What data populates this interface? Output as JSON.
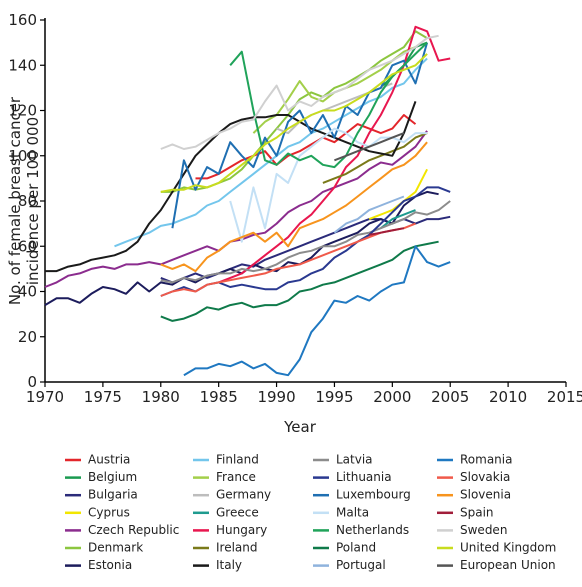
{
  "chart_data": {
    "type": "line",
    "xlabel": "Year",
    "ylabel": [
      "No. of female breast cancer",
      "incidence per 100 000"
    ],
    "x": [
      1970,
      1971,
      1972,
      1973,
      1974,
      1975,
      1976,
      1977,
      1978,
      1979,
      1980,
      1981,
      1982,
      1983,
      1984,
      1985,
      1986,
      1987,
      1988,
      1989,
      1990,
      1991,
      1992,
      1993,
      1994,
      1995,
      1996,
      1997,
      1998,
      1999,
      2000,
      2001,
      2002,
      2003,
      2004,
      2005
    ],
    "xlim": [
      1970,
      2015
    ],
    "xticks": [
      1970,
      1975,
      1980,
      1985,
      1990,
      1995,
      2000,
      2005,
      2010,
      2015
    ],
    "ylim": [
      0,
      160
    ],
    "yticks": [
      0,
      20,
      40,
      60,
      80,
      100,
      120,
      140,
      160
    ],
    "series": [
      {
        "name": "Austria",
        "color": "#e3262b",
        "values": [
          null,
          null,
          null,
          null,
          null,
          null,
          null,
          null,
          null,
          null,
          null,
          null,
          null,
          90,
          90,
          92,
          95,
          98,
          100,
          102,
          96,
          100,
          102,
          105,
          108,
          106,
          110,
          114,
          112,
          110,
          112,
          118,
          114,
          null,
          null,
          null
        ]
      },
      {
        "name": "Belgium",
        "color": "#1a9a50",
        "values": [
          null,
          null,
          null,
          null,
          null,
          null,
          null,
          null,
          null,
          null,
          null,
          null,
          null,
          null,
          null,
          null,
          null,
          null,
          null,
          null,
          null,
          null,
          null,
          null,
          null,
          null,
          null,
          null,
          null,
          130,
          135,
          140,
          148,
          150,
          null,
          null
        ]
      },
      {
        "name": "Bulgaria",
        "color": "#2b2b7a",
        "values": [
          null,
          null,
          null,
          null,
          null,
          null,
          null,
          null,
          null,
          null,
          46,
          44,
          46,
          48,
          46,
          48,
          50,
          52,
          51,
          54,
          56,
          58,
          60,
          62,
          64,
          66,
          68,
          70,
          72,
          72,
          70,
          72,
          70,
          72,
          72,
          73
        ]
      },
      {
        "name": "Cyprus",
        "color": "#f2e600",
        "values": [
          null,
          null,
          null,
          null,
          null,
          null,
          null,
          null,
          null,
          null,
          null,
          null,
          null,
          null,
          null,
          null,
          null,
          null,
          null,
          null,
          null,
          null,
          null,
          null,
          null,
          null,
          null,
          null,
          72,
          74,
          76,
          80,
          84,
          94,
          null,
          null
        ]
      },
      {
        "name": "Czech Republic",
        "color": "#8b2c8e",
        "values": [
          42,
          44,
          47,
          48,
          50,
          51,
          50,
          52,
          52,
          53,
          52,
          54,
          56,
          58,
          60,
          58,
          62,
          63,
          65,
          66,
          70,
          75,
          78,
          80,
          84,
          86,
          88,
          90,
          94,
          97,
          96,
          100,
          104,
          111,
          null,
          null
        ]
      },
      {
        "name": "Denmark",
        "color": "#8cc63f",
        "values": [
          null,
          null,
          null,
          null,
          null,
          null,
          null,
          null,
          null,
          null,
          84,
          84,
          86,
          85,
          86,
          88,
          90,
          94,
          100,
          106,
          112,
          118,
          125,
          128,
          126,
          130,
          132,
          135,
          138,
          142,
          145,
          148,
          155,
          152,
          null,
          null
        ]
      },
      {
        "name": "Estonia",
        "color": "#1c1c5c",
        "values": [
          34,
          37,
          37,
          35,
          39,
          42,
          41,
          39,
          44,
          40,
          44,
          43,
          46,
          44,
          47,
          48,
          50,
          48,
          52,
          50,
          49,
          53,
          52,
          55,
          60,
          62,
          64,
          66,
          70,
          72,
          70,
          78,
          82,
          84,
          83,
          null
        ]
      },
      {
        "name": "Finland",
        "color": "#73c6ec",
        "values": [
          null,
          null,
          null,
          null,
          null,
          null,
          60,
          62,
          64,
          66,
          69,
          70,
          72,
          74,
          78,
          80,
          84,
          88,
          92,
          96,
          100,
          104,
          106,
          110,
          112,
          115,
          118,
          121,
          124,
          126,
          130,
          132,
          138,
          143,
          null,
          null
        ]
      },
      {
        "name": "France",
        "color": "#a3cf4a",
        "values": [
          null,
          null,
          null,
          null,
          null,
          null,
          null,
          null,
          null,
          null,
          null,
          null,
          null,
          null,
          null,
          null,
          null,
          null,
          110,
          115,
          118,
          125,
          133,
          126,
          124,
          128,
          130,
          132,
          135,
          138,
          142,
          146,
          148,
          null,
          null,
          null
        ]
      },
      {
        "name": "Germany",
        "color": "#bdbdbd",
        "values": [
          null,
          null,
          null,
          null,
          null,
          null,
          null,
          null,
          null,
          null,
          null,
          null,
          null,
          null,
          null,
          null,
          null,
          null,
          null,
          null,
          112,
          110,
          115,
          118,
          120,
          122,
          124,
          126,
          128,
          130,
          132,
          null,
          null,
          null,
          null,
          null
        ]
      },
      {
        "name": "Greece",
        "color": "#1f9b8f",
        "values": [
          null,
          null,
          null,
          null,
          null,
          null,
          null,
          null,
          null,
          null,
          null,
          null,
          null,
          null,
          null,
          null,
          null,
          null,
          null,
          null,
          null,
          null,
          null,
          null,
          null,
          null,
          null,
          null,
          null,
          68,
          72,
          74,
          76,
          null,
          null,
          null
        ]
      },
      {
        "name": "Hungary",
        "color": "#e8174f",
        "values": [
          null,
          null,
          null,
          null,
          null,
          null,
          null,
          null,
          null,
          null,
          null,
          null,
          null,
          null,
          null,
          44,
          46,
          48,
          52,
          56,
          60,
          64,
          70,
          74,
          80,
          86,
          95,
          100,
          110,
          118,
          128,
          140,
          157,
          155,
          142,
          143
        ]
      },
      {
        "name": "Ireland",
        "color": "#7a7a1a",
        "values": [
          null,
          null,
          null,
          null,
          null,
          null,
          null,
          null,
          null,
          null,
          null,
          null,
          null,
          null,
          null,
          null,
          null,
          null,
          null,
          null,
          null,
          null,
          null,
          null,
          88,
          90,
          92,
          95,
          98,
          100,
          102,
          104,
          108,
          110,
          null,
          null
        ]
      },
      {
        "name": "Italy",
        "color": "#1a1a1a",
        "values": [
          49,
          49,
          51,
          52,
          54,
          55,
          56,
          58,
          62,
          70,
          76,
          84,
          92,
          100,
          105,
          110,
          114,
          116,
          117,
          117,
          118,
          118,
          115,
          112,
          110,
          108,
          106,
          104,
          102,
          101,
          100,
          110,
          124,
          null,
          null,
          null
        ]
      },
      {
        "name": "Latvia",
        "color": "#8c8c8c",
        "values": [
          null,
          null,
          null,
          null,
          null,
          null,
          null,
          null,
          null,
          null,
          45,
          44,
          46,
          45,
          47,
          48,
          48,
          50,
          49,
          50,
          52,
          55,
          57,
          58,
          60,
          60,
          62,
          65,
          66,
          68,
          70,
          72,
          75,
          74,
          76,
          80
        ]
      },
      {
        "name": "Lithuania",
        "color": "#2a3990",
        "values": [
          null,
          null,
          null,
          null,
          null,
          null,
          null,
          null,
          null,
          null,
          38,
          40,
          42,
          40,
          43,
          44,
          42,
          43,
          42,
          41,
          41,
          44,
          45,
          48,
          50,
          55,
          58,
          62,
          65,
          70,
          75,
          80,
          82,
          86,
          86,
          84
        ]
      },
      {
        "name": "Luxembourg",
        "color": "#1f6fb2",
        "values": [
          null,
          null,
          null,
          null,
          null,
          null,
          null,
          null,
          null,
          null,
          null,
          68,
          98,
          85,
          95,
          92,
          106,
          100,
          95,
          108,
          100,
          115,
          120,
          110,
          118,
          108,
          122,
          118,
          128,
          130,
          140,
          142,
          132,
          150,
          null,
          null
        ]
      },
      {
        "name": "Malta",
        "color": "#c3e0f5",
        "values": [
          null,
          null,
          null,
          null,
          null,
          null,
          null,
          null,
          null,
          null,
          null,
          null,
          null,
          null,
          null,
          null,
          80,
          62,
          86,
          68,
          92,
          88,
          100,
          104,
          108,
          112,
          110,
          106,
          104,
          108,
          108,
          106,
          110,
          110,
          null,
          null
        ]
      },
      {
        "name": "Netherlands",
        "color": "#20a35a",
        "values": [
          null,
          null,
          null,
          null,
          null,
          null,
          null,
          null,
          null,
          null,
          null,
          null,
          null,
          null,
          null,
          null,
          140,
          146,
          120,
          98,
          96,
          101,
          98,
          100,
          96,
          95,
          100,
          110,
          118,
          128,
          135,
          140,
          145,
          150,
          null,
          null
        ]
      },
      {
        "name": "Poland",
        "color": "#0f7a4a",
        "values": [
          null,
          null,
          null,
          null,
          null,
          null,
          null,
          null,
          null,
          null,
          29,
          27,
          28,
          30,
          33,
          32,
          34,
          35,
          33,
          34,
          34,
          36,
          40,
          41,
          43,
          44,
          46,
          48,
          50,
          52,
          54,
          58,
          60,
          61,
          62,
          null
        ]
      },
      {
        "name": "Portugal",
        "color": "#8fb3dd",
        "values": [
          null,
          null,
          null,
          null,
          null,
          null,
          null,
          null,
          null,
          null,
          null,
          null,
          null,
          null,
          null,
          null,
          null,
          null,
          null,
          null,
          null,
          null,
          null,
          null,
          null,
          66,
          70,
          72,
          76,
          78,
          80,
          82,
          null,
          null,
          null,
          null
        ]
      },
      {
        "name": "Romania",
        "color": "#1f78c1",
        "values": [
          null,
          null,
          null,
          null,
          null,
          null,
          null,
          null,
          null,
          null,
          null,
          null,
          3,
          6,
          6,
          8,
          7,
          9,
          6,
          8,
          4,
          3,
          10,
          22,
          28,
          36,
          35,
          38,
          36,
          40,
          43,
          44,
          60,
          53,
          51,
          53
        ]
      },
      {
        "name": "Slovakia",
        "color": "#f05a4a",
        "values": [
          null,
          null,
          null,
          null,
          null,
          null,
          null,
          null,
          null,
          null,
          38,
          40,
          41,
          40,
          43,
          44,
          45,
          46,
          47,
          48,
          50,
          51,
          52,
          54,
          56,
          58,
          60,
          62,
          64,
          66,
          67,
          68,
          70,
          null,
          null,
          null
        ]
      },
      {
        "name": "Slovenia",
        "color": "#f7941d",
        "values": [
          null,
          null,
          null,
          null,
          null,
          null,
          null,
          null,
          null,
          null,
          52,
          50,
          52,
          49,
          55,
          58,
          62,
          64,
          66,
          62,
          66,
          60,
          68,
          70,
          72,
          75,
          78,
          82,
          86,
          90,
          94,
          96,
          100,
          106,
          null,
          null
        ]
      },
      {
        "name": "Spain",
        "color": "#a11d3a",
        "values": [
          null,
          null,
          null,
          null,
          null,
          null,
          null,
          null,
          null,
          null,
          null,
          null,
          null,
          null,
          null,
          null,
          null,
          null,
          null,
          null,
          null,
          null,
          null,
          null,
          null,
          null,
          null,
          null,
          65,
          66,
          67,
          68,
          null,
          null,
          null,
          null
        ]
      },
      {
        "name": "Sweden",
        "color": "#d0d0d0",
        "values": [
          null,
          null,
          null,
          null,
          null,
          null,
          null,
          null,
          null,
          null,
          103,
          105,
          103,
          104,
          107,
          110,
          112,
          115,
          116,
          124,
          131,
          120,
          124,
          122,
          126,
          128,
          130,
          134,
          138,
          140,
          142,
          145,
          148,
          152,
          153,
          null
        ]
      },
      {
        "name": "United Kingdom",
        "color": "#c8dc1e",
        "values": [
          null,
          null,
          null,
          null,
          null,
          null,
          null,
          null,
          null,
          null,
          84,
          85,
          85,
          87,
          86,
          88,
          92,
          96,
          100,
          105,
          108,
          112,
          115,
          118,
          120,
          120,
          122,
          125,
          128,
          132,
          136,
          138,
          140,
          145,
          null,
          null
        ]
      },
      {
        "name": "European Union",
        "color": "#555555",
        "values": [
          null,
          null,
          null,
          null,
          null,
          null,
          null,
          null,
          null,
          null,
          null,
          null,
          null,
          null,
          null,
          null,
          null,
          null,
          null,
          null,
          null,
          null,
          null,
          null,
          null,
          98,
          100,
          102,
          104,
          106,
          108,
          110,
          null,
          null,
          null,
          null
        ]
      }
    ]
  }
}
